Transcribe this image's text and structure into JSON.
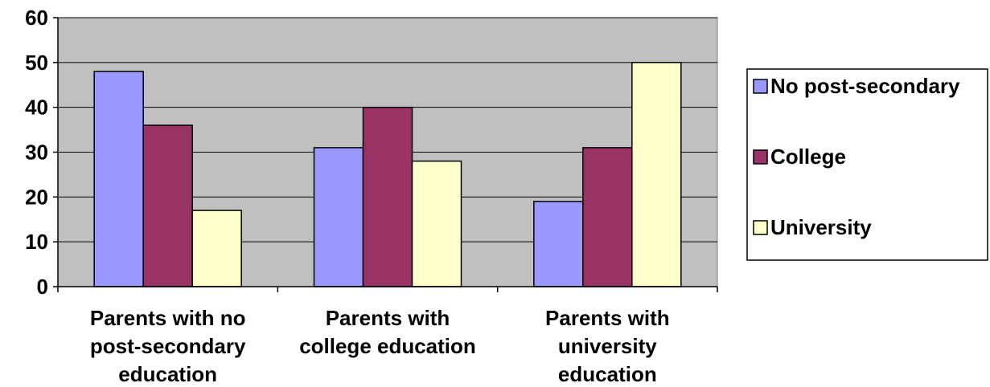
{
  "chart_data": {
    "type": "bar",
    "categories": [
      [
        "Parents with no",
        "post-secondary",
        "education"
      ],
      [
        "Parents with",
        "college education"
      ],
      [
        "Parents with",
        "university",
        "education"
      ]
    ],
    "series": [
      {
        "name": "No post-secondary",
        "color": "#9999ff",
        "values": [
          48,
          31,
          19
        ]
      },
      {
        "name": "College",
        "color": "#993366",
        "values": [
          36,
          40,
          31
        ]
      },
      {
        "name": "University",
        "color": "#ffffcc",
        "values": [
          17,
          28,
          50
        ]
      }
    ],
    "ylim": [
      0,
      60
    ],
    "yticks": [
      0,
      10,
      20,
      30,
      40,
      50,
      60
    ],
    "grid": true,
    "plot_background": "#c0c0c0",
    "legend": "right",
    "title": "",
    "xlabel": "",
    "ylabel": ""
  }
}
